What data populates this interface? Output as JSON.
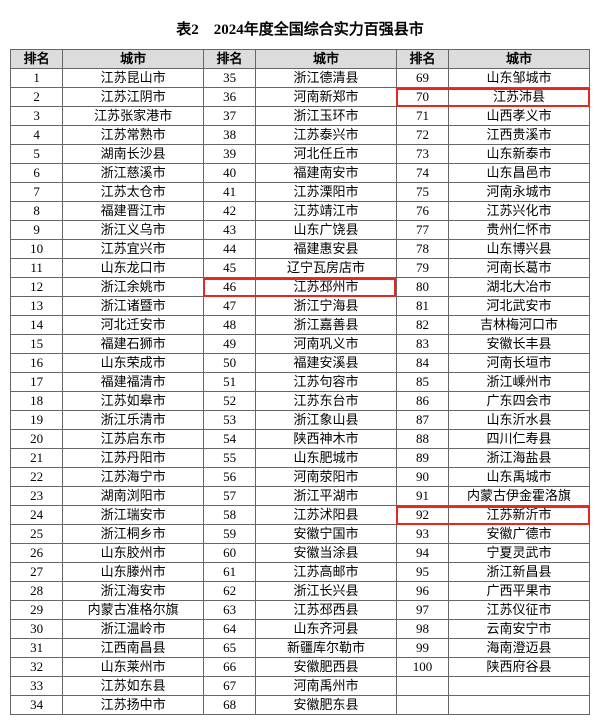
{
  "title": "表2　2024年度全国综合实力百强县市",
  "headers": [
    "排名",
    "城市",
    "排名",
    "城市",
    "排名",
    "城市"
  ],
  "highlight_color": "#e2281f",
  "header_bg": "#dcdcdc",
  "border_color": "#666666",
  "highlights": [
    {
      "rank": 70,
      "city": "江苏沛县"
    },
    {
      "rank": 46,
      "city": "江苏邳州市"
    },
    {
      "rank": 92,
      "city": "江苏新沂市"
    }
  ],
  "rows": [
    [
      1,
      "江苏昆山市",
      35,
      "浙江德清县",
      69,
      "山东邹城市"
    ],
    [
      2,
      "江苏江阴市",
      36,
      "河南新郑市",
      70,
      "江苏沛县"
    ],
    [
      3,
      "江苏张家港市",
      37,
      "浙江玉环市",
      71,
      "山西孝义市"
    ],
    [
      4,
      "江苏常熟市",
      38,
      "江苏泰兴市",
      72,
      "江西贵溪市"
    ],
    [
      5,
      "湖南长沙县",
      39,
      "河北任丘市",
      73,
      "山东新泰市"
    ],
    [
      6,
      "浙江慈溪市",
      40,
      "福建南安市",
      74,
      "山东昌邑市"
    ],
    [
      7,
      "江苏太仓市",
      41,
      "江苏溧阳市",
      75,
      "河南永城市"
    ],
    [
      8,
      "福建晋江市",
      42,
      "江苏靖江市",
      76,
      "江苏兴化市"
    ],
    [
      9,
      "浙江义乌市",
      43,
      "山东广饶县",
      77,
      "贵州仁怀市"
    ],
    [
      10,
      "江苏宜兴市",
      44,
      "福建惠安县",
      78,
      "山东博兴县"
    ],
    [
      11,
      "山东龙口市",
      45,
      "辽宁瓦房店市",
      79,
      "河南长葛市"
    ],
    [
      12,
      "浙江余姚市",
      46,
      "江苏邳州市",
      80,
      "湖北大冶市"
    ],
    [
      13,
      "浙江诸暨市",
      47,
      "浙江宁海县",
      81,
      "河北武安市"
    ],
    [
      14,
      "河北迁安市",
      48,
      "浙江嘉善县",
      82,
      "吉林梅河口市"
    ],
    [
      15,
      "福建石狮市",
      49,
      "河南巩义市",
      83,
      "安徽长丰县"
    ],
    [
      16,
      "山东荣成市",
      50,
      "福建安溪县",
      84,
      "河南长垣市"
    ],
    [
      17,
      "福建福清市",
      51,
      "江苏句容市",
      85,
      "浙江嵊州市"
    ],
    [
      18,
      "江苏如皋市",
      52,
      "江苏东台市",
      86,
      "广东四会市"
    ],
    [
      19,
      "浙江乐清市",
      53,
      "浙江象山县",
      87,
      "山东沂水县"
    ],
    [
      20,
      "江苏启东市",
      54,
      "陕西神木市",
      88,
      "四川仁寿县"
    ],
    [
      21,
      "江苏丹阳市",
      55,
      "山东肥城市",
      89,
      "浙江海盐县"
    ],
    [
      22,
      "江苏海宁市",
      56,
      "河南荥阳市",
      90,
      "山东禹城市"
    ],
    [
      23,
      "湖南浏阳市",
      57,
      "浙江平湖市",
      91,
      "内蒙古伊金霍洛旗"
    ],
    [
      24,
      "浙江瑞安市",
      58,
      "江苏沭阳县",
      92,
      "江苏新沂市"
    ],
    [
      25,
      "浙江桐乡市",
      59,
      "安徽宁国市",
      93,
      "安徽广德市"
    ],
    [
      26,
      "山东胶州市",
      60,
      "安徽当涂县",
      94,
      "宁夏灵武市"
    ],
    [
      27,
      "山东滕州市",
      61,
      "江苏高邮市",
      95,
      "浙江新昌县"
    ],
    [
      28,
      "浙江海安市",
      62,
      "浙江长兴县",
      96,
      "广西平果市"
    ],
    [
      29,
      "内蒙古准格尔旗",
      63,
      "江苏邳西县",
      97,
      "江苏仪征市"
    ],
    [
      30,
      "浙江温岭市",
      64,
      "山东齐河县",
      98,
      "云南安宁市"
    ],
    [
      31,
      "江西南昌县",
      65,
      "新疆库尔勒市",
      99,
      "海南澄迈县"
    ],
    [
      32,
      "山东莱州市",
      66,
      "安徽肥西县",
      100,
      "陕西府谷县"
    ],
    [
      33,
      "江苏如东县",
      67,
      "河南禹州市",
      "",
      ""
    ],
    [
      34,
      "江苏扬中市",
      68,
      "安徽肥东县",
      "",
      ""
    ]
  ]
}
